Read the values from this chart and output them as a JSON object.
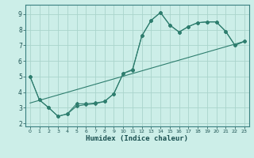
{
  "xlabel": "Humidex (Indice chaleur)",
  "bg_color": "#cceee8",
  "line_color": "#2e7d6e",
  "grid_color": "#aad4cc",
  "xlim": [
    -0.5,
    23.5
  ],
  "ylim": [
    1.8,
    9.6
  ],
  "yticks": [
    2,
    3,
    4,
    5,
    6,
    7,
    8,
    9
  ],
  "xticks": [
    0,
    1,
    2,
    3,
    4,
    5,
    6,
    7,
    8,
    9,
    10,
    11,
    12,
    13,
    14,
    15,
    16,
    17,
    18,
    19,
    20,
    21,
    22,
    23
  ],
  "line1_x": [
    0,
    1,
    2,
    3,
    4,
    5,
    6,
    7,
    8,
    9,
    10,
    11,
    12,
    13,
    14,
    15,
    16,
    17,
    18,
    19,
    20,
    21,
    22,
    23
  ],
  "line1_y": [
    5.0,
    3.5,
    3.0,
    2.45,
    2.6,
    3.25,
    3.25,
    3.3,
    3.4,
    3.9,
    5.2,
    5.45,
    7.6,
    8.6,
    9.1,
    8.3,
    7.85,
    8.2,
    8.45,
    8.5,
    8.5,
    7.9,
    7.0,
    7.25
  ],
  "line2_x": [
    0,
    1,
    2,
    3,
    4,
    5,
    6,
    7,
    8,
    9,
    10,
    11,
    12,
    13,
    14,
    15,
    16,
    17,
    18,
    19,
    20,
    21,
    22,
    23
  ],
  "line2_y": [
    5.0,
    3.5,
    3.0,
    2.45,
    2.6,
    3.1,
    3.2,
    3.25,
    3.4,
    3.9,
    5.2,
    5.4,
    7.6,
    8.6,
    9.1,
    8.3,
    7.85,
    8.2,
    8.45,
    8.5,
    8.5,
    7.9,
    7.0,
    7.25
  ],
  "line3_x": [
    0,
    23
  ],
  "line3_y": [
    3.3,
    7.25
  ]
}
